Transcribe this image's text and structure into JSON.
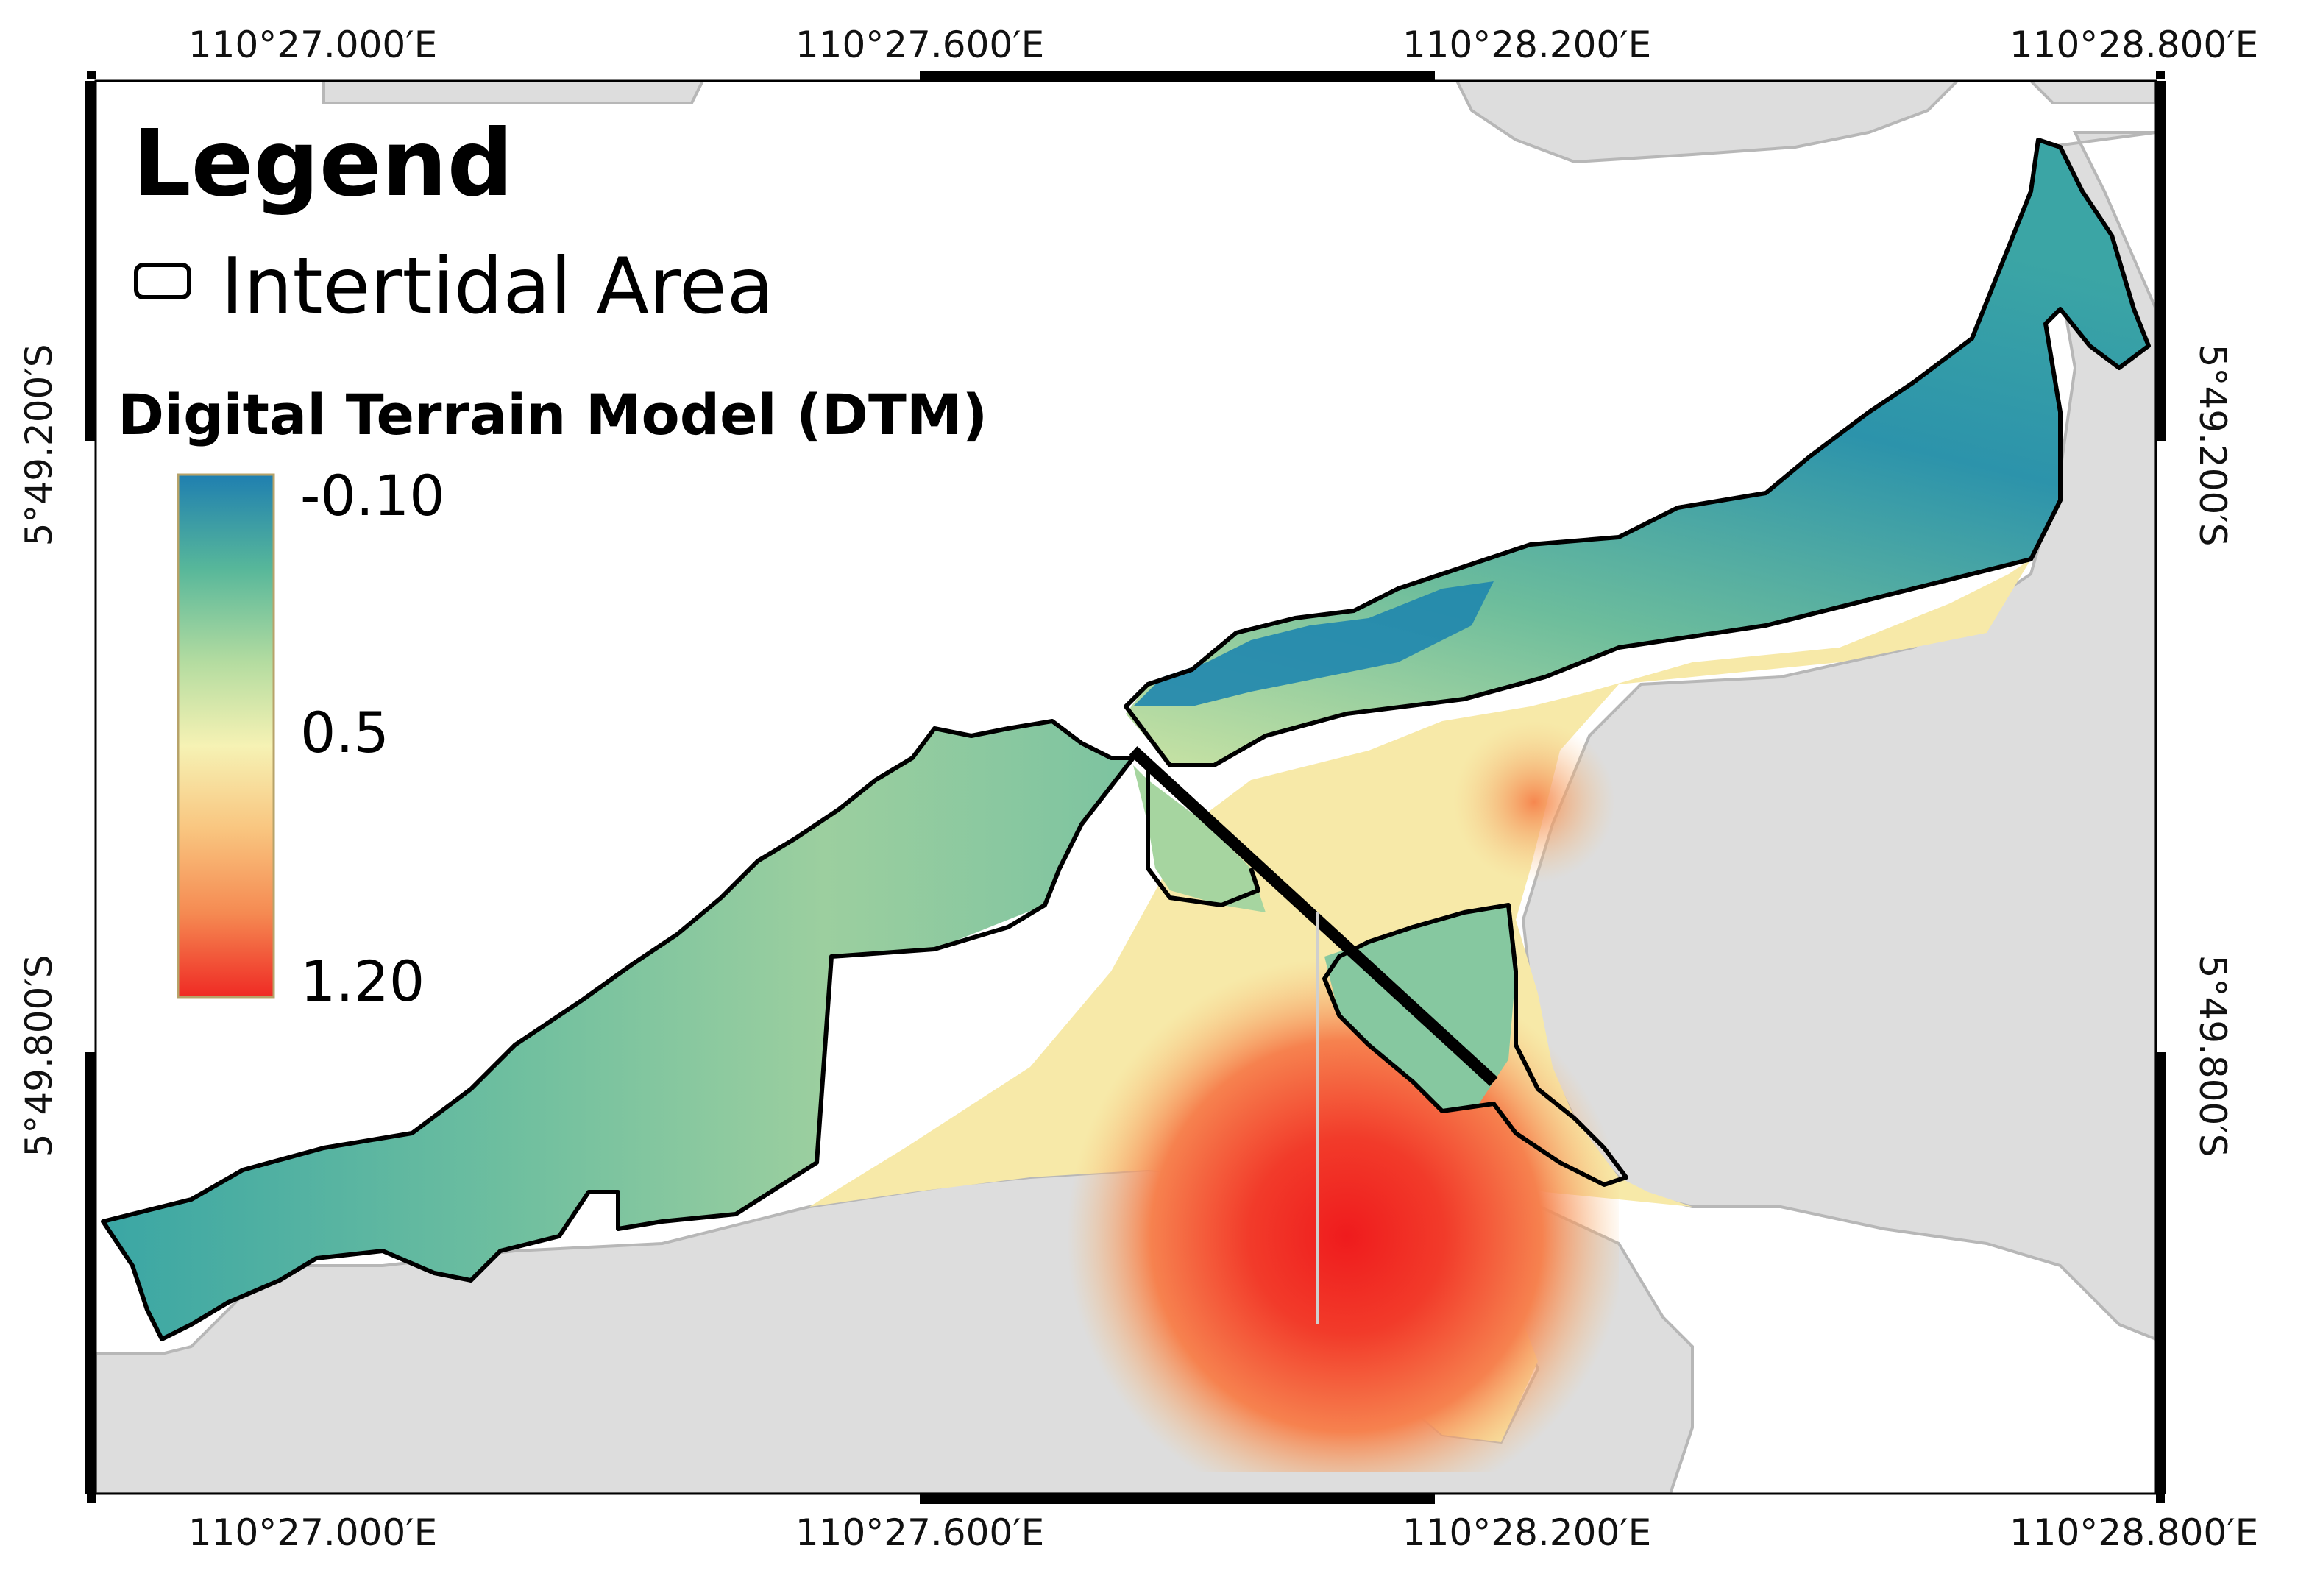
{
  "legend": {
    "title": "Legend",
    "boundary_label": "Intertidal Area",
    "dtm_title": "Digital Terrain Model (DTM)",
    "ramp_labels": [
      "-0.10",
      "0.5",
      "1.20"
    ],
    "ramp_colors": [
      "#1f7fb0",
      "#57b79a",
      "#b4dca0",
      "#f6f2b4",
      "#f9c57f",
      "#f58a52",
      "#ef2a24"
    ]
  },
  "coords": {
    "top": [
      "110°27.000′E",
      "110°27.600′E",
      "110°28.200′E",
      "110°28.800′E"
    ],
    "bottom": [
      "110°27.000′E",
      "110°27.600′E",
      "110°28.200′E",
      "110°28.800′E"
    ],
    "left": [
      "5°49.200′S",
      "5°49.800′S"
    ],
    "right": [
      "5°49.200′S",
      "5°49.800′S"
    ]
  },
  "colors": {
    "land": "#dddddd",
    "land_edge": "#b7b7b7",
    "water": "#ffffff",
    "boundary": "#000000",
    "frame": "#000000"
  }
}
